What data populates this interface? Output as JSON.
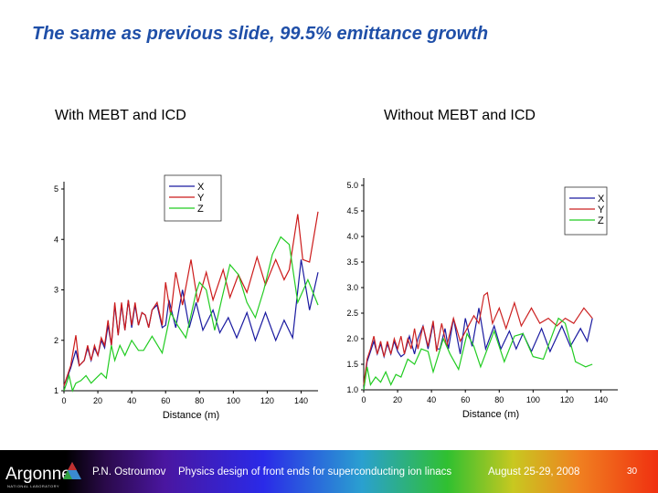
{
  "slide": {
    "title": "The same as previous slide, 99.5% emittance growth",
    "left_label": "With MEBT and ICD",
    "right_label": "Without MEBT and ICD"
  },
  "footer": {
    "logo": "Argonne",
    "logo_sub": "NATIONAL LABORATORY",
    "author": "P.N. Ostroumov",
    "talk": "Physics design of front ends for superconducting ion linacs",
    "date": "August 25-29, 2008",
    "page": "30"
  },
  "chart_data": [
    {
      "type": "line",
      "xlabel": "Distance (m)",
      "ylabel": "",
      "xlim": [
        0,
        150
      ],
      "ylim": [
        1,
        5
      ],
      "xticks": [
        "0",
        "20",
        "40",
        "60",
        "80",
        "100",
        "120",
        "140"
      ],
      "yticks": [
        "1",
        "2",
        "3",
        "4",
        "5"
      ],
      "legend": "top-center",
      "series": [
        {
          "name": "X",
          "color": "#1a1aa0",
          "points": [
            [
              0,
              1.1
            ],
            [
              4,
              1.45
            ],
            [
              7,
              1.8
            ],
            [
              9,
              1.5
            ],
            [
              12,
              1.6
            ],
            [
              14,
              1.85
            ],
            [
              16,
              1.6
            ],
            [
              18,
              1.85
            ],
            [
              20,
              1.7
            ],
            [
              22,
              2.0
            ],
            [
              24,
              1.85
            ],
            [
              26,
              2.3
            ],
            [
              28,
              1.9
            ],
            [
              30,
              2.7
            ],
            [
              32,
              2.1
            ],
            [
              34,
              2.7
            ],
            [
              36,
              2.2
            ],
            [
              38,
              2.8
            ],
            [
              40,
              2.25
            ],
            [
              42,
              2.7
            ],
            [
              44,
              2.3
            ],
            [
              46,
              2.55
            ],
            [
              48,
              2.5
            ],
            [
              50,
              2.25
            ],
            [
              52,
              2.6
            ],
            [
              55,
              2.7
            ],
            [
              58,
              2.25
            ],
            [
              60,
              2.3
            ],
            [
              62,
              2.8
            ],
            [
              66,
              2.25
            ],
            [
              70,
              3.0
            ],
            [
              74,
              2.25
            ],
            [
              78,
              2.75
            ],
            [
              82,
              2.2
            ],
            [
              88,
              2.6
            ],
            [
              92,
              2.15
            ],
            [
              97,
              2.45
            ],
            [
              102,
              2.05
            ],
            [
              108,
              2.55
            ],
            [
              113,
              2.0
            ],
            [
              119,
              2.55
            ],
            [
              125,
              2.0
            ],
            [
              130,
              2.4
            ],
            [
              135,
              2.05
            ],
            [
              140,
              3.6
            ],
            [
              145,
              2.6
            ],
            [
              150,
              3.35
            ]
          ]
        },
        {
          "name": "Y",
          "color": "#cc1a1a",
          "points": [
            [
              0,
              1.1
            ],
            [
              4,
              1.5
            ],
            [
              7,
              2.1
            ],
            [
              9,
              1.5
            ],
            [
              12,
              1.6
            ],
            [
              14,
              1.9
            ],
            [
              16,
              1.6
            ],
            [
              18,
              1.9
            ],
            [
              20,
              1.7
            ],
            [
              22,
              2.05
            ],
            [
              24,
              1.9
            ],
            [
              26,
              2.4
            ],
            [
              28,
              1.9
            ],
            [
              30,
              2.75
            ],
            [
              32,
              2.1
            ],
            [
              34,
              2.75
            ],
            [
              36,
              2.2
            ],
            [
              38,
              2.8
            ],
            [
              40,
              2.3
            ],
            [
              42,
              2.75
            ],
            [
              44,
              2.3
            ],
            [
              46,
              2.55
            ],
            [
              48,
              2.5
            ],
            [
              50,
              2.25
            ],
            [
              52,
              2.6
            ],
            [
              55,
              2.75
            ],
            [
              58,
              2.3
            ],
            [
              60,
              3.15
            ],
            [
              63,
              2.5
            ],
            [
              66,
              3.35
            ],
            [
              70,
              2.7
            ],
            [
              75,
              3.6
            ],
            [
              79,
              2.75
            ],
            [
              84,
              3.35
            ],
            [
              88,
              2.8
            ],
            [
              94,
              3.4
            ],
            [
              98,
              2.85
            ],
            [
              103,
              3.3
            ],
            [
              108,
              2.95
            ],
            [
              114,
              3.65
            ],
            [
              119,
              3.1
            ],
            [
              125,
              3.6
            ],
            [
              130,
              3.2
            ],
            [
              133,
              3.4
            ],
            [
              138,
              4.5
            ],
            [
              141,
              3.6
            ],
            [
              145,
              3.55
            ],
            [
              150,
              4.55
            ]
          ]
        },
        {
          "name": "Z",
          "color": "#22cc22",
          "points": [
            [
              0,
              1.0
            ],
            [
              3,
              1.3
            ],
            [
              5,
              1.0
            ],
            [
              7,
              1.15
            ],
            [
              10,
              1.2
            ],
            [
              13,
              1.3
            ],
            [
              16,
              1.15
            ],
            [
              19,
              1.25
            ],
            [
              22,
              1.35
            ],
            [
              25,
              1.25
            ],
            [
              28,
              1.9
            ],
            [
              30,
              1.6
            ],
            [
              33,
              1.9
            ],
            [
              36,
              1.7
            ],
            [
              40,
              2.0
            ],
            [
              44,
              1.8
            ],
            [
              47,
              1.8
            ],
            [
              52,
              2.08
            ],
            [
              58,
              1.75
            ],
            [
              63,
              2.55
            ],
            [
              67,
              2.3
            ],
            [
              72,
              2.05
            ],
            [
              78,
              2.95
            ],
            [
              80,
              3.15
            ],
            [
              84,
              3.0
            ],
            [
              89,
              2.2
            ],
            [
              93,
              2.8
            ],
            [
              98,
              3.5
            ],
            [
              103,
              3.3
            ],
            [
              108,
              2.75
            ],
            [
              113,
              2.45
            ],
            [
              118,
              3.0
            ],
            [
              123,
              3.7
            ],
            [
              128,
              4.05
            ],
            [
              133,
              3.9
            ],
            [
              138,
              2.75
            ],
            [
              144,
              3.2
            ],
            [
              150,
              2.7
            ]
          ]
        }
      ]
    },
    {
      "type": "line",
      "xlabel": "Distance (m)",
      "ylabel": "",
      "xlim": [
        0,
        150
      ],
      "ylim": [
        1,
        5
      ],
      "xticks": [
        "0",
        "20",
        "40",
        "60",
        "80",
        "100",
        "120",
        "140"
      ],
      "yticks": [
        "1.0",
        "1.5",
        "2.0",
        "2.5",
        "3.0",
        "3.5",
        "4.0",
        "4.5",
        "5.0"
      ],
      "legend": "top-right",
      "series": [
        {
          "name": "X",
          "color": "#1a1aa0",
          "points": [
            [
              0,
              1.0
            ],
            [
              2,
              1.55
            ],
            [
              4,
              1.75
            ],
            [
              6,
              1.95
            ],
            [
              8,
              1.7
            ],
            [
              10,
              1.9
            ],
            [
              12,
              1.65
            ],
            [
              14,
              1.9
            ],
            [
              16,
              1.7
            ],
            [
              18,
              1.95
            ],
            [
              20,
              1.75
            ],
            [
              22,
              1.65
            ],
            [
              24,
              1.7
            ],
            [
              27,
              2.05
            ],
            [
              30,
              1.7
            ],
            [
              32,
              2.0
            ],
            [
              35,
              2.25
            ],
            [
              38,
              1.8
            ],
            [
              41,
              2.3
            ],
            [
              43,
              1.8
            ],
            [
              45,
              1.8
            ],
            [
              48,
              2.2
            ],
            [
              50,
              1.8
            ],
            [
              53,
              2.4
            ],
            [
              57,
              1.7
            ],
            [
              60,
              2.4
            ],
            [
              64,
              1.85
            ],
            [
              68,
              2.6
            ],
            [
              72,
              1.8
            ],
            [
              77,
              2.25
            ],
            [
              81,
              1.8
            ],
            [
              86,
              2.15
            ],
            [
              90,
              1.8
            ],
            [
              94,
              2.1
            ],
            [
              99,
              1.75
            ],
            [
              105,
              2.2
            ],
            [
              110,
              1.75
            ],
            [
              117,
              2.25
            ],
            [
              122,
              1.85
            ],
            [
              128,
              2.2
            ],
            [
              132,
              1.95
            ],
            [
              135,
              2.4
            ]
          ]
        },
        {
          "name": "Y",
          "color": "#cc2222",
          "points": [
            [
              0,
              1.1
            ],
            [
              2,
              1.6
            ],
            [
              4,
              1.8
            ],
            [
              6,
              2.05
            ],
            [
              8,
              1.7
            ],
            [
              10,
              1.95
            ],
            [
              12,
              1.65
            ],
            [
              14,
              1.95
            ],
            [
              16,
              1.7
            ],
            [
              18,
              2.0
            ],
            [
              20,
              1.8
            ],
            [
              22,
              2.05
            ],
            [
              24,
              1.7
            ],
            [
              26,
              2.0
            ],
            [
              28,
              1.8
            ],
            [
              30,
              2.2
            ],
            [
              32,
              1.8
            ],
            [
              35,
              2.25
            ],
            [
              38,
              1.85
            ],
            [
              41,
              2.35
            ],
            [
              43,
              1.75
            ],
            [
              46,
              2.3
            ],
            [
              49,
              1.85
            ],
            [
              53,
              2.4
            ],
            [
              57,
              1.95
            ],
            [
              61,
              2.2
            ],
            [
              65,
              2.45
            ],
            [
              68,
              2.3
            ],
            [
              71,
              2.85
            ],
            [
              73,
              2.9
            ],
            [
              76,
              2.3
            ],
            [
              80,
              2.6
            ],
            [
              84,
              2.2
            ],
            [
              89,
              2.7
            ],
            [
              93,
              2.25
            ],
            [
              99,
              2.6
            ],
            [
              104,
              2.3
            ],
            [
              109,
              2.4
            ],
            [
              114,
              2.25
            ],
            [
              119,
              2.4
            ],
            [
              124,
              2.3
            ],
            [
              130,
              2.6
            ],
            [
              135,
              2.4
            ]
          ]
        },
        {
          "name": "Z",
          "color": "#22cc22",
          "points": [
            [
              0,
              1.0
            ],
            [
              2,
              1.45
            ],
            [
              4,
              1.1
            ],
            [
              7,
              1.25
            ],
            [
              10,
              1.15
            ],
            [
              13,
              1.35
            ],
            [
              16,
              1.1
            ],
            [
              19,
              1.3
            ],
            [
              22,
              1.25
            ],
            [
              26,
              1.6
            ],
            [
              30,
              1.5
            ],
            [
              34,
              1.8
            ],
            [
              38,
              1.75
            ],
            [
              41,
              1.35
            ],
            [
              47,
              2.0
            ],
            [
              51,
              1.7
            ],
            [
              56,
              1.4
            ],
            [
              61,
              2.1
            ],
            [
              65,
              1.85
            ],
            [
              69,
              1.45
            ],
            [
              77,
              2.15
            ],
            [
              83,
              1.55
            ],
            [
              89,
              2.05
            ],
            [
              94,
              2.1
            ],
            [
              100,
              1.65
            ],
            [
              106,
              1.6
            ],
            [
              115,
              2.4
            ],
            [
              119,
              2.3
            ],
            [
              125,
              1.55
            ],
            [
              131,
              1.45
            ],
            [
              135,
              1.5
            ]
          ]
        }
      ]
    }
  ]
}
